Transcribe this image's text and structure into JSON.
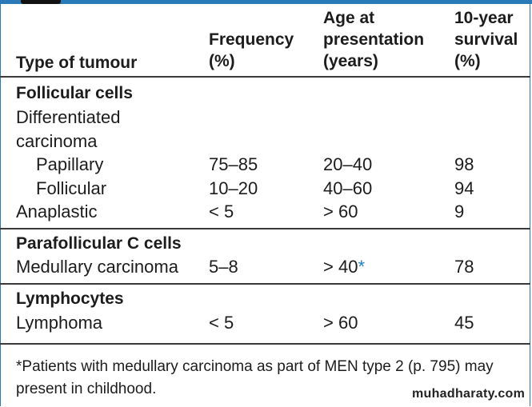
{
  "header": {
    "col1": "Type of tumour",
    "col2_line1": "Frequency",
    "col2_line2": "(%)",
    "col3_line1": "Age at",
    "col3_line2": "presentation",
    "col3_line3": "(years)",
    "col4_line1": "10-year",
    "col4_line2": "survival",
    "col4_line3": "(%)"
  },
  "sections": {
    "follicular": {
      "title": "Follicular cells",
      "diff_line1": "Differentiated",
      "diff_line2": "carcinoma",
      "papillary": {
        "name": "Papillary",
        "frequency": "75–85",
        "age": "20–40",
        "survival": "98"
      },
      "follicular": {
        "name": "Follicular",
        "frequency": "10–20",
        "age": "40–60",
        "survival": "94"
      },
      "anaplastic": {
        "name": "Anaplastic",
        "frequency": "< 5",
        "age": "> 60",
        "survival": "9"
      }
    },
    "parafollicular": {
      "title": "Parafollicular C cells",
      "medullary": {
        "name": "Medullary carcinoma",
        "frequency": "5–8",
        "age": "> 40",
        "asterisk": "*",
        "survival": "78"
      }
    },
    "lymphocytes": {
      "title": "Lymphocytes",
      "lymphoma": {
        "name": "Lymphoma",
        "frequency": "< 5",
        "age": "> 60",
        "survival": "45"
      }
    }
  },
  "footnote": "*Patients with medullary carcinoma as part of MEN type 2 (p. 795) may present in childhood.",
  "watermark": "muhadharaty.com",
  "colors": {
    "accent": "#2a7ab8",
    "asterisk": "#1f7fc0"
  }
}
